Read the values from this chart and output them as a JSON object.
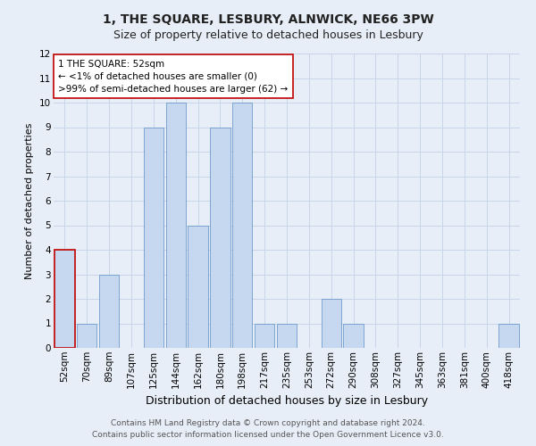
{
  "title": "1, THE SQUARE, LESBURY, ALNWICK, NE66 3PW",
  "subtitle": "Size of property relative to detached houses in Lesbury",
  "xlabel": "Distribution of detached houses by size in Lesbury",
  "ylabel": "Number of detached properties",
  "categories": [
    "52sqm",
    "70sqm",
    "89sqm",
    "107sqm",
    "125sqm",
    "144sqm",
    "162sqm",
    "180sqm",
    "198sqm",
    "217sqm",
    "235sqm",
    "253sqm",
    "272sqm",
    "290sqm",
    "308sqm",
    "327sqm",
    "345sqm",
    "363sqm",
    "381sqm",
    "400sqm",
    "418sqm"
  ],
  "values": [
    4,
    1,
    3,
    0,
    9,
    10,
    5,
    9,
    10,
    1,
    1,
    0,
    2,
    1,
    0,
    0,
    0,
    0,
    0,
    0,
    1
  ],
  "bar_color": "#c5d8f0",
  "bar_edge_color": "#5b8ec4",
  "highlight_bar_index": 0,
  "highlight_color": "#c00000",
  "annotation_line1": "1 THE SQUARE: 52sqm",
  "annotation_line2": "← <1% of detached houses are smaller (0)",
  "annotation_line3": ">99% of semi-detached houses are larger (62) →",
  "ylim": [
    0,
    12
  ],
  "yticks": [
    0,
    1,
    2,
    3,
    4,
    5,
    6,
    7,
    8,
    9,
    10,
    11,
    12
  ],
  "grid_color": "#c8d4e8",
  "background_color": "#e8eef8",
  "plot_background": "#e8eef8",
  "footer_line1": "Contains HM Land Registry data © Crown copyright and database right 2024.",
  "footer_line2": "Contains public sector information licensed under the Open Government Licence v3.0.",
  "title_fontsize": 10,
  "subtitle_fontsize": 9,
  "xlabel_fontsize": 9,
  "ylabel_fontsize": 8,
  "tick_fontsize": 7.5,
  "annotation_fontsize": 7.5,
  "footer_fontsize": 6.5
}
